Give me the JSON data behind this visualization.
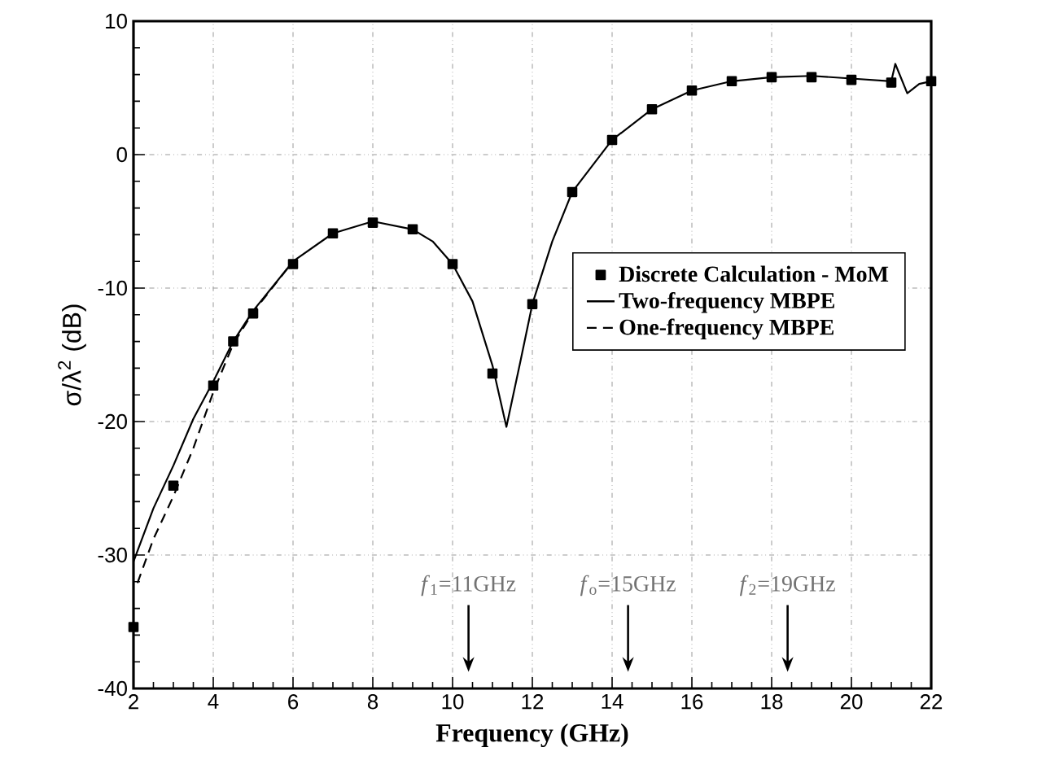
{
  "chart_data": {
    "type": "line",
    "xlabel": "Frequency (GHz)",
    "ylabel": "σ/λ$^{2}$ (dB)",
    "xlim": [
      2,
      22
    ],
    "ylim": [
      -40,
      10
    ],
    "xticks": [
      2,
      4,
      6,
      8,
      10,
      12,
      14,
      16,
      18,
      20,
      22
    ],
    "yticks": [
      -40,
      -30,
      -20,
      -10,
      0,
      10
    ],
    "grid": true,
    "legend": "right",
    "series": [
      {
        "name": "Discrete Calculation - MoM",
        "type": "scatter",
        "marker": "square",
        "color": "#000000",
        "x": [
          2,
          3,
          4,
          4.5,
          5,
          6,
          7,
          8,
          9,
          10,
          11,
          12,
          13,
          14,
          15,
          16,
          17,
          18,
          19,
          20,
          21,
          22
        ],
        "values": [
          -35.4,
          -24.8,
          -17.3,
          -14.0,
          -11.9,
          -8.2,
          -5.9,
          -5.1,
          -5.6,
          -8.2,
          -16.4,
          -11.2,
          -2.8,
          1.1,
          3.4,
          4.8,
          5.5,
          5.8,
          5.8,
          5.6,
          5.4,
          5.5
        ]
      },
      {
        "name": "Two-frequency MBPE",
        "line_style": "solid",
        "color": "#000000",
        "x": [
          2,
          2.5,
          3,
          3.5,
          4,
          4.5,
          5,
          6,
          7,
          8,
          9,
          9.5,
          10,
          10.5,
          11,
          11.35,
          11.7,
          12,
          12.5,
          13,
          14,
          15,
          16,
          17,
          18,
          19,
          20,
          21,
          21.1,
          21.4,
          21.7,
          22
        ],
        "values": [
          -30.5,
          -26.5,
          -23.3,
          -19.8,
          -17.0,
          -14.0,
          -11.7,
          -8.0,
          -5.9,
          -5.0,
          -5.6,
          -6.5,
          -8.2,
          -11.0,
          -15.8,
          -20.4,
          -15.5,
          -11.2,
          -6.5,
          -2.8,
          1.1,
          3.4,
          4.8,
          5.5,
          5.8,
          5.9,
          5.7,
          5.5,
          6.8,
          4.6,
          5.3,
          5.5
        ]
      },
      {
        "name": "One-frequency MBPE",
        "line_style": "dashed",
        "color": "#000000",
        "x": [
          2.1,
          2.5,
          3,
          3.5,
          4,
          4.5,
          5,
          6
        ],
        "values": [
          -32.1,
          -28.8,
          -25.6,
          -22.0,
          -17.8,
          -14.2,
          -11.8,
          -8.0
        ]
      }
    ],
    "annotations": [
      "*f*$_{1}$=11GHz",
      "*f*$_{o}$=15GHz",
      "*f*$_{2}$=19GHz"
    ]
  }
}
